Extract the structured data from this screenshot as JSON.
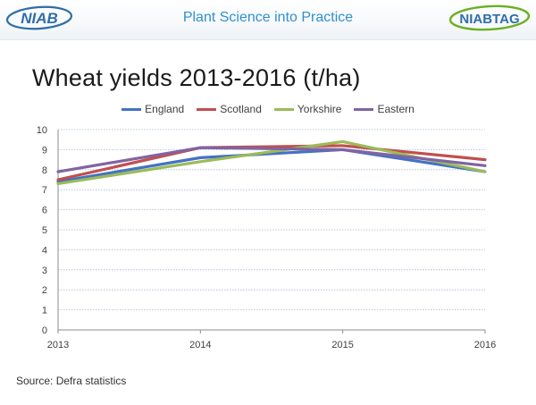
{
  "header": {
    "logo_left_text": "NIAB",
    "tagline": "Plant Science into Practice",
    "logo_right_text": "NIABTAG"
  },
  "colors": {
    "brand_blue": "#2f6ea8",
    "tagline_blue": "#2f8fcf",
    "tag_green": "#6ab023"
  },
  "footer": {
    "source": "Source: Defra statistics"
  },
  "chart_data": {
    "type": "line",
    "title": "Wheat yields 2013-2016 (t/ha)",
    "xlabel": "",
    "ylabel": "",
    "categories": [
      "2013",
      "2014",
      "2015",
      "2016"
    ],
    "ylim": [
      0,
      10
    ],
    "yticks": [
      "0",
      "1",
      "2",
      "3",
      "4",
      "5",
      "6",
      "7",
      "8",
      "9",
      "10"
    ],
    "grid": true,
    "legend_position": "top",
    "series": [
      {
        "name": "England",
        "color": "#4472c4",
        "values": [
          7.4,
          8.6,
          9.0,
          7.9
        ]
      },
      {
        "name": "Scotland",
        "color": "#c0504d",
        "values": [
          7.5,
          9.1,
          9.2,
          8.5
        ]
      },
      {
        "name": "Yorkshire",
        "color": "#9bbb59",
        "values": [
          7.3,
          8.4,
          9.4,
          7.9
        ]
      },
      {
        "name": "Eastern",
        "color": "#8064a2",
        "values": [
          7.9,
          9.1,
          9.0,
          8.2
        ]
      }
    ]
  }
}
